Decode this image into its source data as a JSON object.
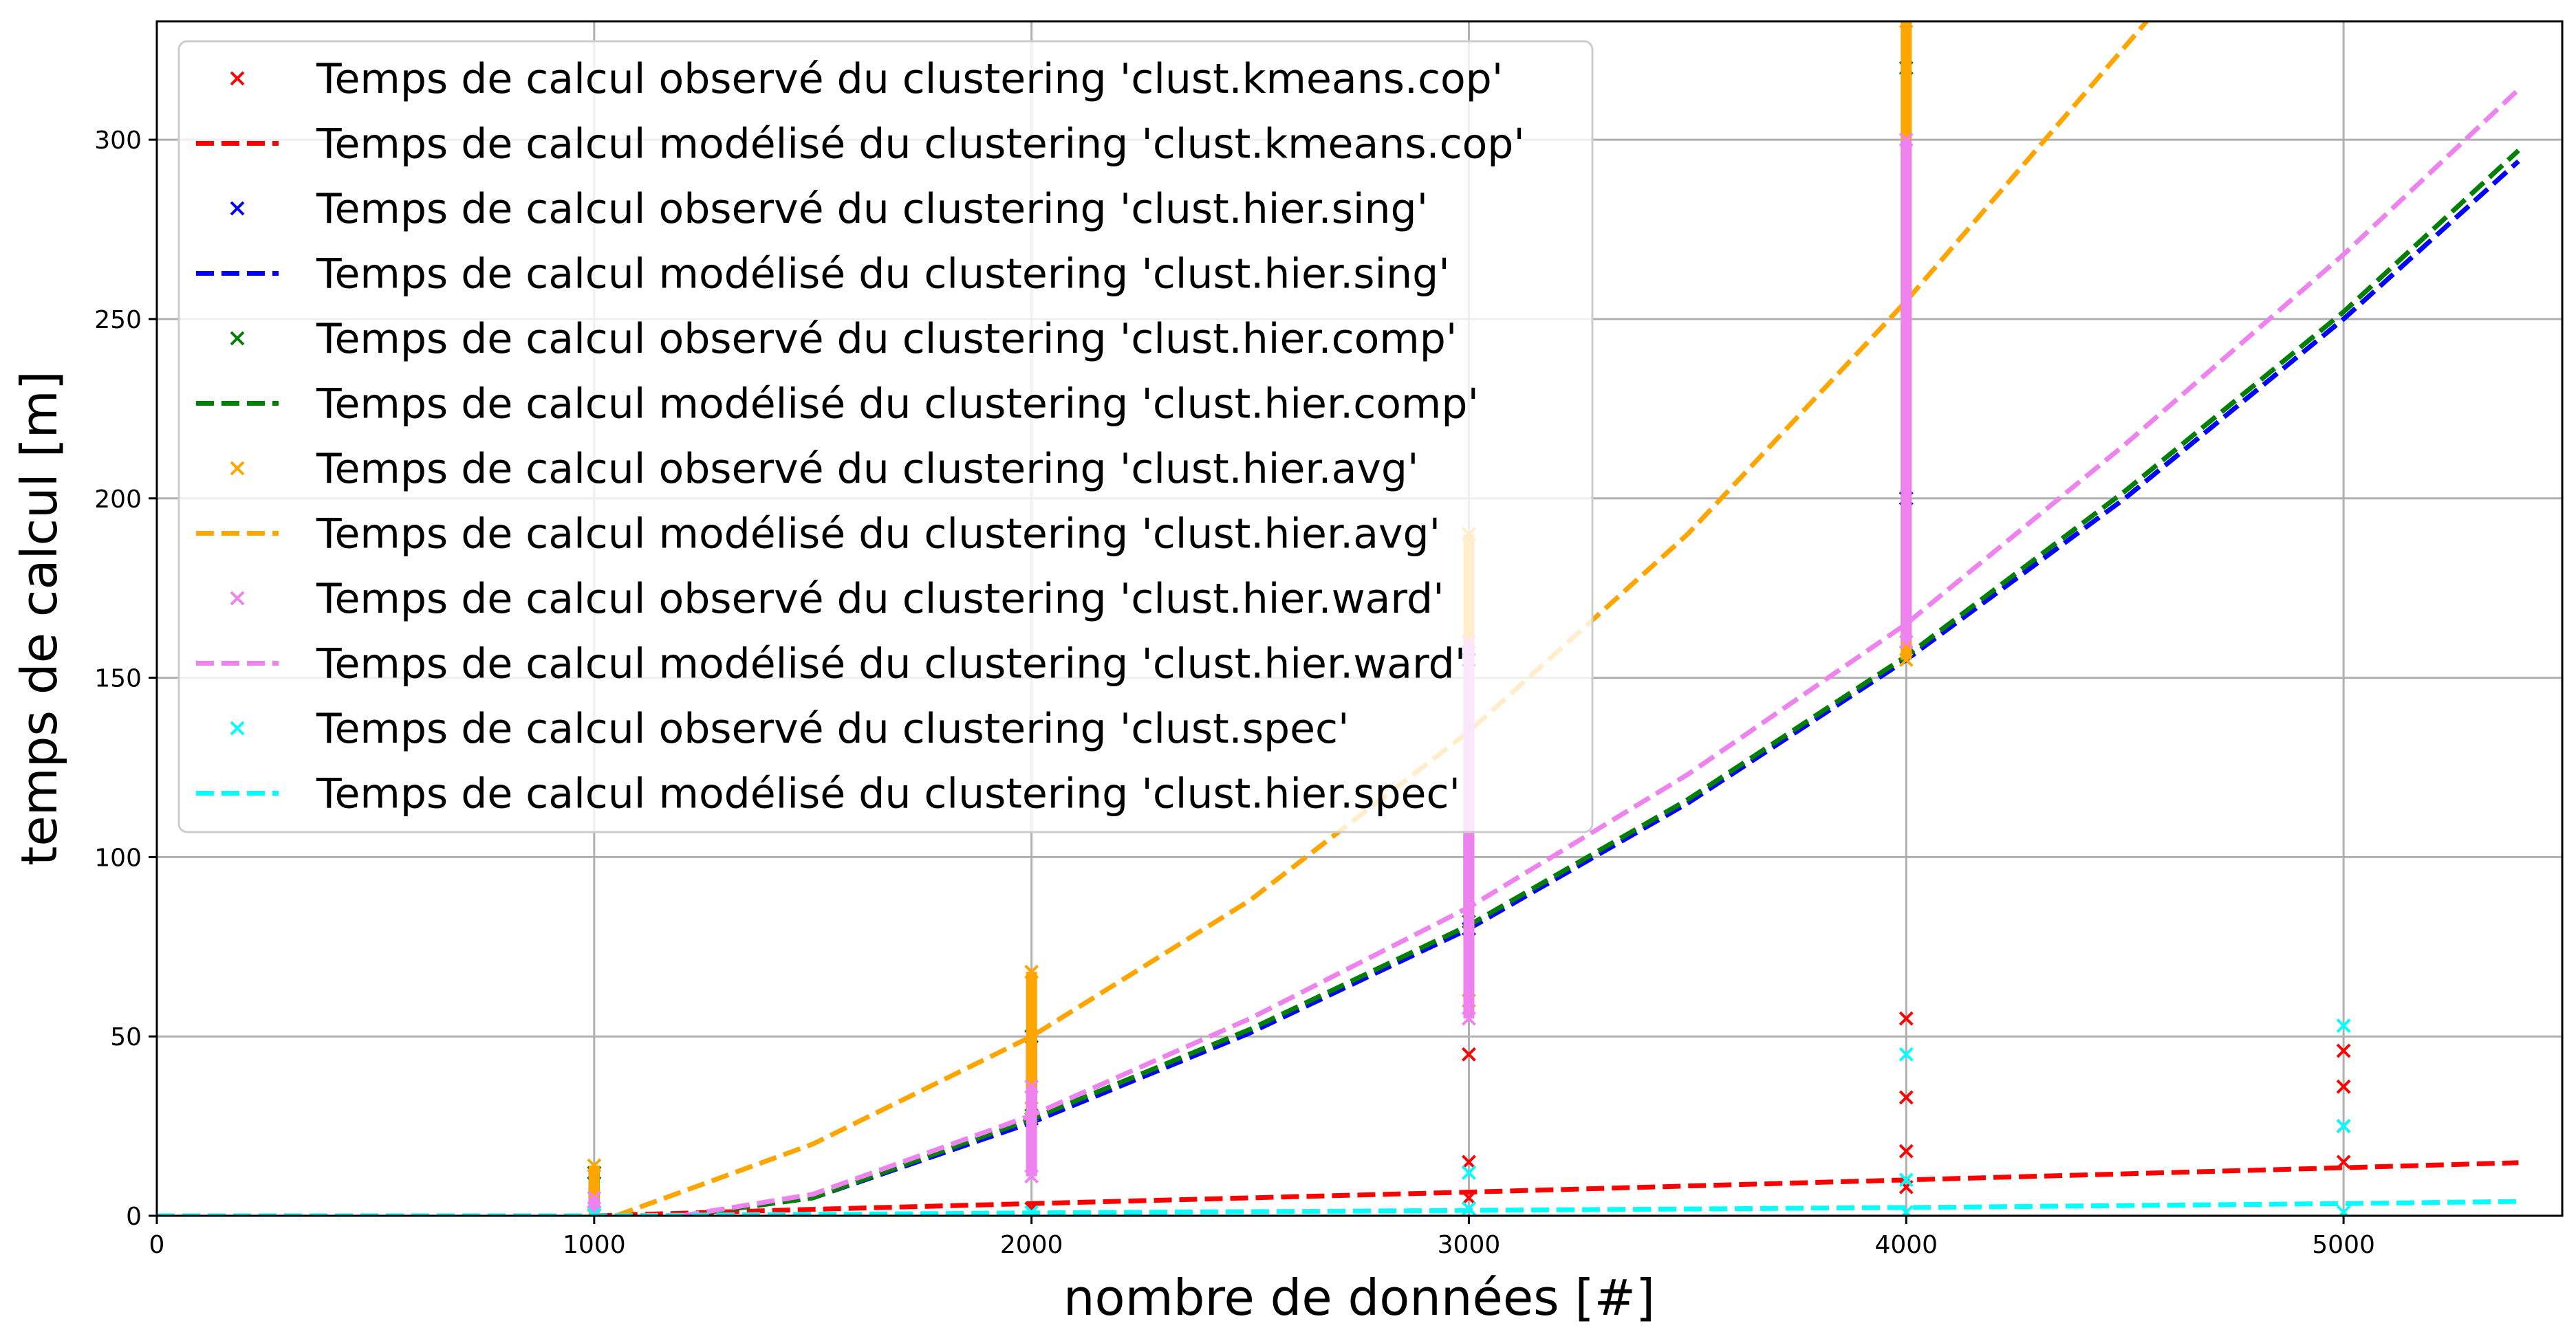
{
  "chart_data": {
    "type": "scatter",
    "xlabel": "nombre de données [#]",
    "ylabel": "temps de calcul [m]",
    "xlim": [
      0,
      5500
    ],
    "ylim": [
      0,
      333
    ],
    "grid": true,
    "legend_position": "top-left",
    "xticks": [
      0,
      1000,
      2000,
      3000,
      4000,
      5000
    ],
    "yticks": [
      0,
      50,
      100,
      150,
      200,
      250,
      300
    ],
    "series": [
      {
        "name": "Temps de calcul observé du clustering 'clust.kmeans.cop'",
        "kind": "observed",
        "color": "#ff0000",
        "x": [
          1000,
          2000,
          3000,
          3000,
          3000,
          4000,
          4000,
          4000,
          4000,
          5000,
          5000,
          5000,
          5000
        ],
        "y": [
          0.3,
          2,
          5,
          15,
          45,
          8,
          18,
          33,
          55,
          15,
          25,
          36,
          46
        ]
      },
      {
        "name": "Temps de calcul modélisé du clustering 'clust.kmeans.cop'",
        "kind": "model",
        "color": "#ff0000",
        "x": [
          1000,
          1500,
          2000,
          2500,
          3000,
          3500,
          4000,
          4500,
          5000,
          5400
        ],
        "y": [
          0,
          1.8,
          3.4,
          5,
          6.6,
          8.3,
          10,
          11.7,
          13.4,
          14.8
        ]
      },
      {
        "name": "Temps de calcul observé du clustering 'clust.hier.sing'",
        "kind": "observed",
        "color": "#0000ff",
        "x": [
          1000,
          2000,
          2000,
          3000,
          3000,
          4000,
          4000
        ],
        "y": [
          1,
          12,
          27,
          50,
          80,
          155,
          200
        ],
        "range": true
      },
      {
        "name": "Temps de calcul modélisé du clustering 'clust.hier.sing'",
        "kind": "model",
        "color": "#0000ff",
        "x": [
          1200,
          1500,
          2000,
          2500,
          3000,
          3500,
          4000,
          4500,
          5000,
          5400
        ],
        "y": [
          0,
          5,
          26,
          51,
          80,
          115,
          155,
          200,
          250,
          294
        ]
      },
      {
        "name": "Temps de calcul observé du clustering 'clust.hier.comp'",
        "kind": "observed",
        "color": "#008000",
        "x": [
          1000,
          2000,
          2000,
          3000,
          3000,
          4000,
          4000
        ],
        "y": [
          1,
          12,
          28,
          50,
          82,
          160,
          320
        ],
        "range": true
      },
      {
        "name": "Temps de calcul modélisé du clustering 'clust.hier.comp'",
        "kind": "model",
        "color": "#008000",
        "x": [
          1200,
          1500,
          2000,
          2500,
          3000,
          3500,
          4000,
          4500,
          5000,
          5400
        ],
        "y": [
          0,
          5,
          27,
          52,
          81,
          116,
          156,
          202,
          252,
          297
        ]
      },
      {
        "name": "Temps de calcul observé du clustering 'clust.hier.avg'",
        "kind": "observed",
        "color": "#ffa500",
        "x": [
          1000,
          1000,
          2000,
          2000,
          3000,
          3000,
          4000,
          4000
        ],
        "y": [
          0,
          14,
          30,
          68,
          60,
          190,
          155,
          333
        ],
        "range": true
      },
      {
        "name": "Temps de calcul modélisé du clustering 'clust.hier.avg'",
        "kind": "model",
        "color": "#ffa500",
        "x": [
          1050,
          1500,
          2000,
          2500,
          3000,
          3500,
          4000,
          4550
        ],
        "y": [
          0,
          20,
          50,
          88,
          135,
          190,
          255,
          333
        ]
      },
      {
        "name": "Temps de calcul observé du clustering 'clust.hier.ward'",
        "kind": "observed",
        "color": "#ee82ee",
        "x": [
          1000,
          1000,
          2000,
          2000,
          3000,
          3000,
          4000,
          4000
        ],
        "y": [
          1,
          5,
          11,
          36,
          55,
          160,
          160,
          300
        ],
        "range": true
      },
      {
        "name": "Temps de calcul modélisé du clustering 'clust.hier.ward'",
        "kind": "model",
        "color": "#ee82ee",
        "x": [
          1200,
          1500,
          2000,
          2500,
          3000,
          3500,
          4000,
          4500,
          5000,
          5400
        ],
        "y": [
          0,
          6,
          28,
          55,
          86,
          123,
          165,
          215,
          268,
          314
        ]
      },
      {
        "name": "Temps de calcul observé du clustering 'clust.spec'",
        "kind": "observed",
        "color": "#00ffff",
        "x": [
          1000,
          2000,
          3000,
          3000,
          4000,
          4000,
          4000,
          5000,
          5000,
          5000
        ],
        "y": [
          0.3,
          1,
          2,
          12,
          1,
          10,
          45,
          1,
          25,
          53
        ]
      },
      {
        "name": "Temps de calcul modélisé du clustering 'clust.hier.spec'",
        "kind": "model",
        "color": "#00ffff",
        "x": [
          0,
          1000,
          2000,
          3000,
          4000,
          5000,
          5400
        ],
        "y": [
          0,
          0,
          0.8,
          1.5,
          2.3,
          3.4,
          4
        ]
      }
    ]
  }
}
